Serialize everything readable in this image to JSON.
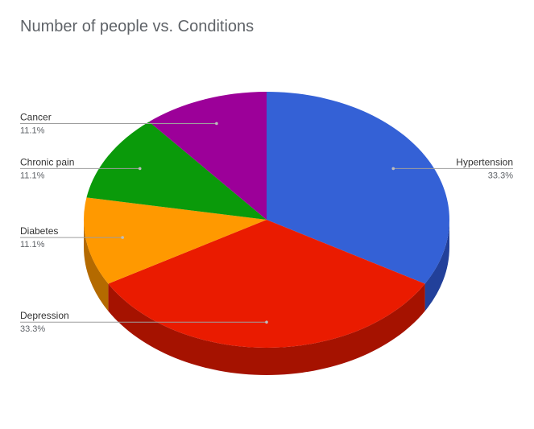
{
  "chart_data": {
    "type": "pie",
    "three_d": true,
    "title": "Number of people vs. Conditions",
    "legend": "labels with leader lines",
    "slices": [
      {
        "label": "Hypertension",
        "value": 33.3,
        "percent_label": "33.3%",
        "color": "#3461d6",
        "side_color": "#22409a"
      },
      {
        "label": "Depression",
        "value": 33.3,
        "percent_label": "33.3%",
        "color": "#ea1b00",
        "side_color": "#a51200"
      },
      {
        "label": "Diabetes",
        "value": 11.1,
        "percent_label": "11.1%",
        "color": "#ff9900",
        "side_color": "#b46a00"
      },
      {
        "label": "Chronic pain",
        "value": 11.1,
        "percent_label": "11.1%",
        "color": "#0a9a0a",
        "side_color": "#066c06"
      },
      {
        "label": "Cancer",
        "value": 11.1,
        "percent_label": "11.1%",
        "color": "#9c0099",
        "side_color": "#6b006a"
      }
    ]
  }
}
